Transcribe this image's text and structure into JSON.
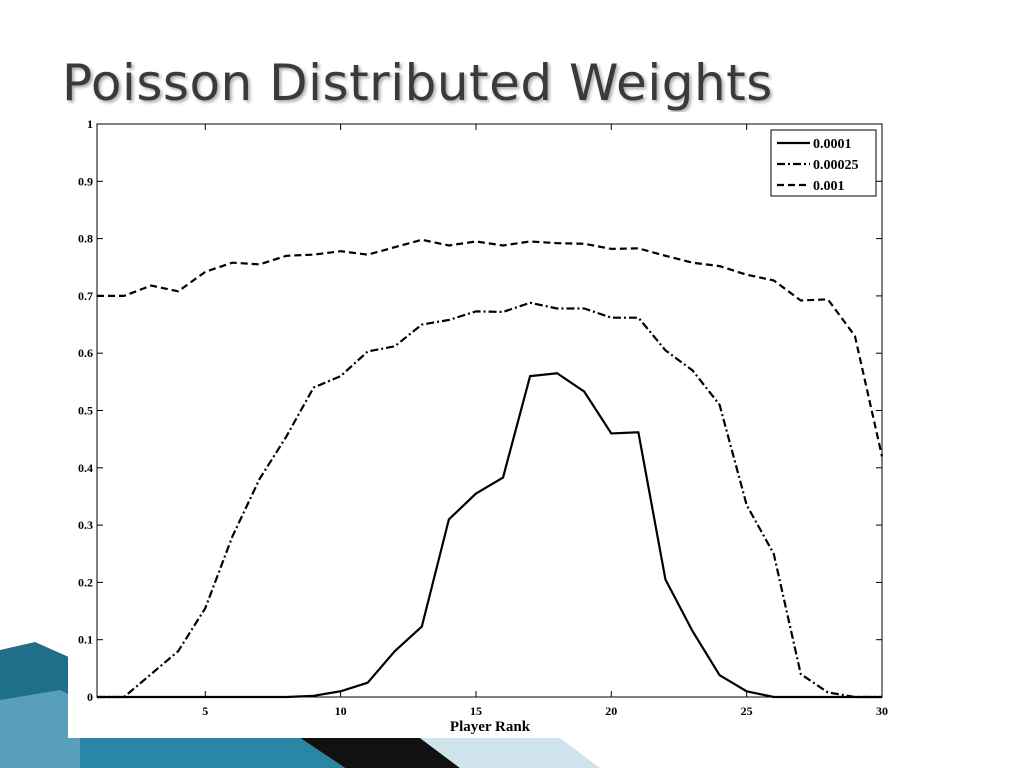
{
  "slide": {
    "title": "Poisson Distributed Weights"
  },
  "colors": {
    "accent_dark": "#1f6f8b",
    "accent_light": "#6fb3cf",
    "accent_pale": "#cfe3ec",
    "line": "#000000"
  },
  "chart_data": {
    "type": "line",
    "xlabel": "Player Rank",
    "ylabel": "",
    "xlim": [
      1,
      30
    ],
    "ylim": [
      0,
      1
    ],
    "x_ticks": [
      5,
      10,
      15,
      20,
      25,
      30
    ],
    "y_ticks": [
      0,
      0.1,
      0.2,
      0.3,
      0.4,
      0.5,
      0.6,
      0.7,
      0.8,
      0.9,
      1
    ],
    "grid": false,
    "legend_position": "top-right",
    "x": [
      1,
      2,
      3,
      4,
      5,
      6,
      7,
      8,
      9,
      10,
      11,
      12,
      13,
      14,
      15,
      16,
      17,
      18,
      19,
      20,
      21,
      22,
      23,
      24,
      25,
      26,
      27,
      28,
      29,
      30
    ],
    "series": [
      {
        "name": "0.0001",
        "style": "solid",
        "values": [
          0,
          0,
          0,
          0,
          0,
          0,
          0,
          0,
          0.002,
          0.01,
          0.025,
          0.08,
          0.123,
          0.31,
          0.355,
          0.383,
          0.56,
          0.565,
          0.533,
          0.46,
          0.462,
          0.205,
          0.115,
          0.038,
          0.01,
          0,
          0,
          0,
          0,
          0
        ]
      },
      {
        "name": "0.00025",
        "style": "dashdot",
        "values": [
          0,
          0,
          0.04,
          0.08,
          0.155,
          0.28,
          0.38,
          0.455,
          0.54,
          0.56,
          0.603,
          0.612,
          0.65,
          0.658,
          0.673,
          0.672,
          0.688,
          0.678,
          0.678,
          0.662,
          0.662,
          0.605,
          0.57,
          0.51,
          0.335,
          0.25,
          0.04,
          0.008,
          0,
          0
        ]
      },
      {
        "name": "0.001",
        "style": "dashed",
        "values": [
          0.7,
          0.7,
          0.718,
          0.708,
          0.742,
          0.758,
          0.755,
          0.77,
          0.772,
          0.778,
          0.772,
          0.785,
          0.798,
          0.788,
          0.795,
          0.788,
          0.795,
          0.792,
          0.791,
          0.782,
          0.783,
          0.77,
          0.758,
          0.752,
          0.737,
          0.727,
          0.692,
          0.694,
          0.63,
          0.42
        ]
      }
    ]
  }
}
